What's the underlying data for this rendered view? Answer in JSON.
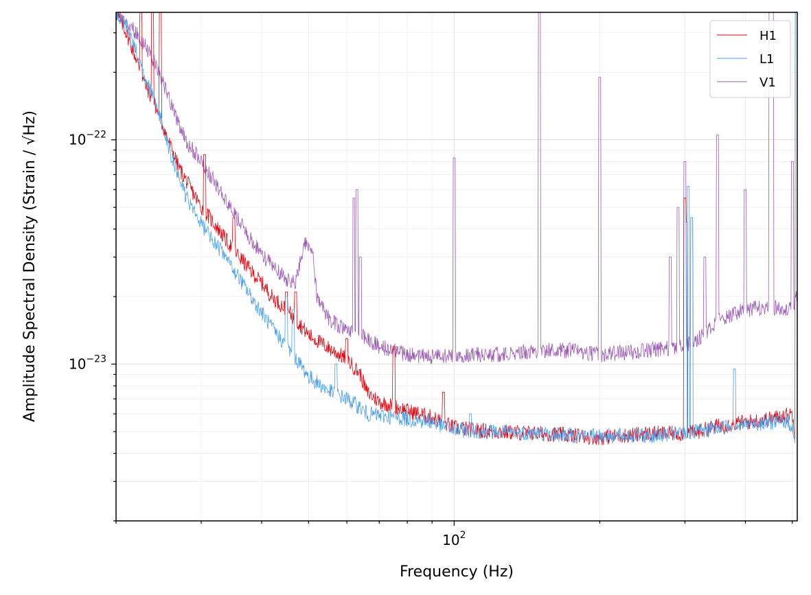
{
  "chart_data": {
    "type": "line",
    "title": "",
    "xlabel": "Frequency (Hz)",
    "ylabel": "Amplitude Spectral Density (Strain / √Hz)",
    "x_scale": "log",
    "y_scale": "log",
    "xlim": [
      20,
      512
    ],
    "ylim": [
      2e-24,
      3.7e-22
    ],
    "x_major_ticks": [
      {
        "value": 100,
        "label": "10",
        "exp": "2"
      }
    ],
    "y_major_ticks": [
      {
        "value": 1e-22,
        "label": "10",
        "exp": "−22"
      },
      {
        "value": 1e-23,
        "label": "10",
        "exp": "−23"
      }
    ],
    "grid": true,
    "legend_position": "top-right",
    "series": [
      {
        "name": "H1",
        "color": "#e8000b",
        "x": [
          20,
          21,
          22,
          23,
          24,
          25,
          26,
          27,
          28,
          30,
          32,
          34,
          36,
          38,
          40,
          42,
          45,
          48,
          50,
          55,
          60,
          64,
          66,
          70,
          75,
          80,
          90,
          100,
          120,
          150,
          180,
          200,
          250,
          300,
          320,
          350,
          400,
          450,
          480,
          500,
          510
        ],
        "y": [
          3.7e-22,
          3e-22,
          2.3e-22,
          1.75e-22,
          1.45e-22,
          1.15e-22,
          9.2e-23,
          7.5e-23,
          6.5e-23,
          5e-23,
          4.2e-23,
          3.5e-23,
          3e-23,
          2.6e-23,
          2.3e-23,
          2e-23,
          1.75e-23,
          1.5e-23,
          1.35e-23,
          1.18e-23,
          1.05e-23,
          9e-24,
          7.5e-24,
          6.8e-24,
          6.5e-24,
          6.2e-24,
          5.8e-24,
          5.2e-24,
          5e-24,
          4.9e-24,
          4.8e-24,
          4.7e-24,
          4.9e-24,
          4.9e-24,
          5e-24,
          5.3e-24,
          5.5e-24,
          5.7e-24,
          5.9e-24,
          6e-24,
          4.4e-24
        ],
        "peaks": [
          [
            22.5,
            3.7e-22
          ],
          [
            23.8,
            3.7e-22
          ],
          [
            24.7,
            3.7e-22
          ],
          [
            30.5,
            8.6e-23
          ],
          [
            35,
            4.5e-23
          ],
          [
            45,
            2.1e-23
          ],
          [
            47,
            2.1e-23
          ],
          [
            60,
            1.3e-23
          ],
          [
            75,
            1.2e-23
          ],
          [
            95,
            7.5e-24
          ],
          [
            300,
            5.5e-23
          ],
          [
            302,
            4.3e-23
          ],
          [
            510,
            3.7e-22
          ]
        ]
      },
      {
        "name": "L1",
        "color": "#48a0f0",
        "x": [
          20,
          21,
          22,
          23,
          24,
          25,
          26,
          27,
          28,
          30,
          32,
          34,
          36,
          38,
          40,
          42,
          45,
          48,
          50,
          55,
          60,
          64,
          66,
          70,
          75,
          80,
          90,
          100,
          120,
          150,
          180,
          200,
          250,
          300,
          320,
          350,
          400,
          450,
          480,
          500,
          510
        ],
        "y": [
          3.7e-22,
          3.2e-22,
          2.5e-22,
          1.85e-22,
          1.5e-22,
          1.15e-22,
          8.5e-23,
          6.8e-23,
          5.5e-23,
          4.2e-23,
          3.5e-23,
          2.9e-23,
          2.4e-23,
          2e-23,
          1.7e-23,
          1.45e-23,
          1.2e-23,
          1e-23,
          8.8e-24,
          7.6e-24,
          7e-24,
          6.4e-24,
          6e-24,
          5.9e-24,
          5.8e-24,
          5.7e-24,
          5.5e-24,
          5.1e-24,
          5e-24,
          4.9e-24,
          4.8e-24,
          4.8e-24,
          4.8e-24,
          4.9e-24,
          5e-24,
          5.2e-24,
          5.4e-24,
          5.5e-24,
          5.6e-24,
          5.3e-24,
          4e-24
        ],
        "peaks": [
          [
            45,
            2e-23
          ],
          [
            46.5,
            1.75e-23
          ],
          [
            57,
            1e-23
          ],
          [
            108,
            6e-24
          ],
          [
            305,
            6.2e-23
          ],
          [
            310,
            4.5e-23
          ],
          [
            380,
            9.5e-24
          ],
          [
            510,
            3.7e-22
          ]
        ]
      },
      {
        "name": "V1",
        "color": "#9b59b6",
        "x": [
          20,
          21,
          22,
          23,
          24,
          25,
          26,
          27,
          28,
          30,
          32,
          34,
          36,
          38,
          40,
          42,
          45,
          47,
          49,
          51,
          52,
          55,
          60,
          64,
          66,
          70,
          75,
          80,
          90,
          100,
          120,
          150,
          180,
          200,
          250,
          300,
          320,
          350,
          400,
          450,
          480,
          500,
          510
        ],
        "y": [
          3.7e-22,
          3.4e-22,
          3e-22,
          2.6e-22,
          2.2e-22,
          1.8e-22,
          1.45e-22,
          1.15e-22,
          9.8e-23,
          8e-23,
          6.5e-23,
          5.2e-23,
          4.3e-23,
          3.6e-23,
          3.1e-23,
          2.75e-23,
          2.4e-23,
          2.3e-23,
          3.5e-23,
          3.2e-23,
          2e-23,
          1.6e-23,
          1.4e-23,
          1.35e-23,
          1.3e-23,
          1.2e-23,
          1.15e-23,
          1.1e-23,
          1.08e-23,
          1.1e-23,
          1.1e-23,
          1.15e-23,
          1.15e-23,
          1.1e-23,
          1.15e-23,
          1.2e-23,
          1.3e-23,
          1.55e-23,
          1.75e-23,
          1.8e-23,
          1.75e-23,
          1.8e-23,
          2e-23
        ],
        "peaks": [
          [
            62,
            5.5e-23
          ],
          [
            63,
            6e-23
          ],
          [
            64,
            3e-23
          ],
          [
            100,
            8.3e-23
          ],
          [
            150,
            3.7e-22
          ],
          [
            200,
            1.9e-22
          ],
          [
            280,
            3e-23
          ],
          [
            290,
            5e-23
          ],
          [
            300,
            8e-23
          ],
          [
            310,
            4.5e-23
          ],
          [
            330,
            3e-23
          ],
          [
            350,
            1.05e-22
          ],
          [
            400,
            6e-23
          ],
          [
            450,
            3.7e-22
          ],
          [
            455,
            3.7e-22
          ],
          [
            500,
            8e-23
          ]
        ]
      }
    ]
  }
}
